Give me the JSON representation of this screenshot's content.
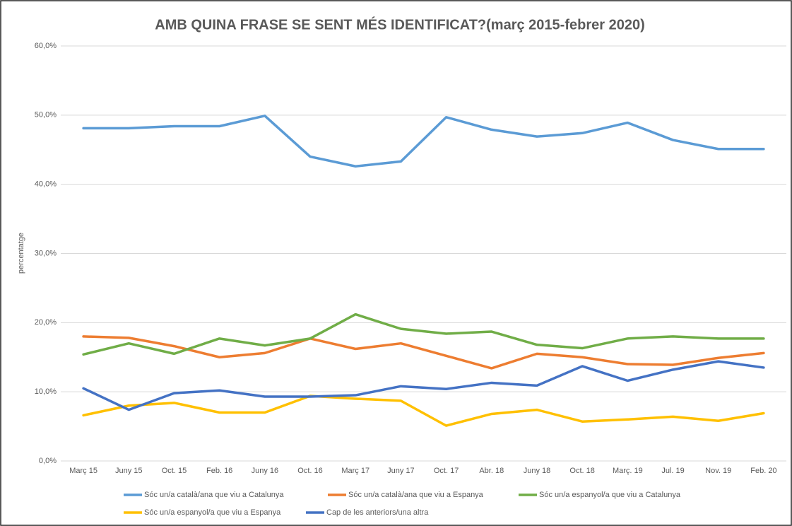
{
  "chart_data": {
    "type": "line",
    "title": "AMB QUINA FRASE SE SENT MÉS IDENTIFICAT?(març 2015-febrer 2020)",
    "y_label": "percentatge",
    "categories": [
      "Març 15",
      "Juny 15",
      "Oct. 15",
      "Feb. 16",
      "Juny 16",
      "Oct. 16",
      "Març 17",
      "Juny 17",
      "Oct. 17",
      "Abr. 18",
      "Juny 18",
      "Oct. 18",
      "Març. 19",
      "Jul. 19",
      "Nov. 19",
      "Feb. 20"
    ],
    "series": [
      {
        "name": "Sóc un/a català/ana que viu a Catalunya",
        "color": "#5b9bd5",
        "values": [
          48.1,
          48.1,
          48.4,
          48.4,
          49.9,
          44.0,
          42.6,
          43.3,
          49.7,
          47.9,
          46.9,
          47.4,
          48.9,
          46.4,
          45.1,
          45.1
        ]
      },
      {
        "name": "Sóc un/a català/ana que viu a Espanya",
        "color": "#ed7d31",
        "values": [
          18.0,
          17.8,
          16.6,
          15.0,
          15.6,
          17.7,
          16.2,
          17.0,
          15.2,
          13.4,
          15.5,
          15.0,
          14.0,
          13.9,
          14.9,
          15.6
        ]
      },
      {
        "name": "Sóc un/a espanyol/a que viu a Catalunya",
        "color": "#70ad47",
        "values": [
          15.4,
          17.0,
          15.5,
          17.7,
          16.7,
          17.7,
          21.2,
          19.1,
          18.4,
          18.7,
          16.8,
          16.3,
          17.7,
          18.0,
          17.7,
          17.7
        ]
      },
      {
        "name": "Sóc un/a espanyol/a que viu a Espanya",
        "color": "#ffc000",
        "values": [
          6.6,
          8.0,
          8.4,
          7.0,
          7.0,
          9.4,
          9.0,
          8.7,
          5.1,
          6.8,
          7.4,
          5.7,
          6.0,
          6.4,
          5.8,
          6.9
        ]
      },
      {
        "name": "Cap de les anteriors/una altra",
        "color": "#4472c4",
        "values": [
          10.5,
          7.4,
          9.8,
          10.2,
          9.3,
          9.3,
          9.5,
          10.8,
          10.4,
          11.3,
          10.9,
          13.7,
          11.6,
          13.2,
          14.4,
          13.5
        ]
      }
    ],
    "ylim": [
      0,
      60
    ],
    "yticks": [
      {
        "value": 0,
        "label": "0,0%"
      },
      {
        "value": 10,
        "label": "10,0%"
      },
      {
        "value": 20,
        "label": "20,0%"
      },
      {
        "value": 30,
        "label": "30,0%"
      },
      {
        "value": 40,
        "label": "40,0%"
      },
      {
        "value": 50,
        "label": "50,0%"
      },
      {
        "value": 60,
        "label": "60,0%"
      }
    ],
    "grid": true
  }
}
